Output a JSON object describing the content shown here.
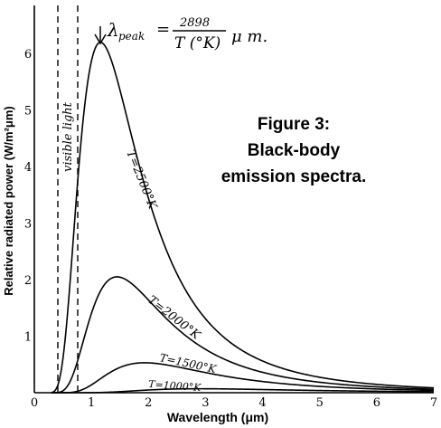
{
  "chart_data": {
    "type": "line",
    "xlabel": "Wavelength (μm)",
    "ylabel": "Relative radiated power (W/m²μm)",
    "xlim": [
      0,
      7
    ],
    "ylim": [
      0,
      6.5
    ],
    "x_ticks": [
      "0",
      "1",
      "2",
      "3",
      "4",
      "5",
      "6",
      "7"
    ],
    "y_ticks": [
      "1",
      "2",
      "3",
      "4",
      "5",
      "6"
    ],
    "grid": false,
    "series": [
      {
        "name": "T=2500°K",
        "temperature": 2500,
        "peak_x": 1.16,
        "peak_y": 6.2
      },
      {
        "name": "T=2000°K",
        "temperature": 2000,
        "peak_x": 1.45,
        "peak_y": 2.05
      },
      {
        "name": "T=1500°K",
        "temperature": 1500,
        "peak_x": 1.93,
        "peak_y": 0.53
      },
      {
        "name": "T=1000°K",
        "temperature": 1000,
        "peak_x": 2.9,
        "peak_y": 0.07
      }
    ],
    "visible_band": {
      "label": "visible light",
      "x_range": [
        0.4,
        0.75
      ]
    },
    "annotations": {
      "peak_formula_lambda": "λ",
      "peak_formula_sub": "peak",
      "peak_formula_eq": "=",
      "peak_formula_num": "2898",
      "peak_formula_den": "T (°K)",
      "peak_formula_unit": "μ m."
    },
    "caption_lines": [
      "Figure 3:",
      "Black-body",
      "emission spectra."
    ]
  }
}
